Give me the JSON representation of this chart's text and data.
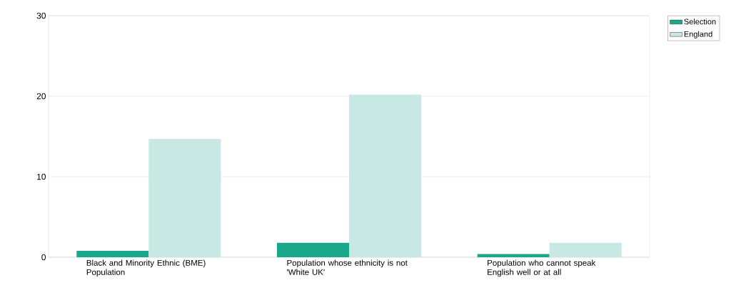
{
  "chart_data": {
    "type": "bar",
    "categories": [
      "Black and Minority Ethnic (BME) Population",
      "Population whose ethnicity is not 'White UK'",
      "Population who cannot speak English well or at all"
    ],
    "series": [
      {
        "name": "Selection",
        "color": "#1aa88a",
        "values": [
          0.8,
          1.8,
          0.4
        ]
      },
      {
        "name": "England",
        "color": "#c8e9e3",
        "values": [
          14.7,
          20.2,
          1.8
        ]
      }
    ],
    "ylim": [
      0,
      30
    ],
    "yticks": [
      0,
      10,
      20,
      30
    ],
    "grid": "y",
    "legend": "top right"
  }
}
